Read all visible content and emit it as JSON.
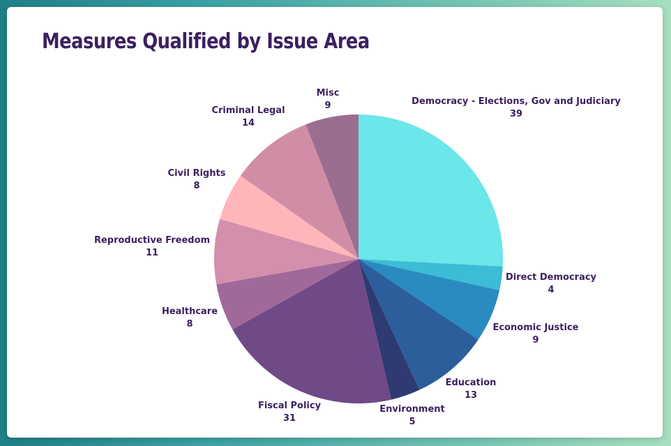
{
  "chart_data": {
    "type": "pie",
    "title": "Measures Qualified by Issue Area",
    "slices": [
      {
        "label": "Democracy - Elections, Gov and Judiciary",
        "value": 39,
        "color": "#6be6ea"
      },
      {
        "label": "Direct Democracy",
        "value": 4,
        "color": "#3cbcd6"
      },
      {
        "label": "Economic Justice",
        "value": 9,
        "color": "#2a8bc0"
      },
      {
        "label": "Education",
        "value": 13,
        "color": "#2c5e9c"
      },
      {
        "label": "Environment",
        "value": 5,
        "color": "#2f3a72"
      },
      {
        "label": "Fiscal Policy",
        "value": 31,
        "color": "#704a86"
      },
      {
        "label": "Healthcare",
        "value": 8,
        "color": "#a0699a"
      },
      {
        "label": "Reproductive Freedom",
        "value": 11,
        "color": "#d38fab"
      },
      {
        "label": "Civil Rights",
        "value": 8,
        "color": "#ffb6bb"
      },
      {
        "label": "Criminal Legal",
        "value": 14,
        "color": "#d28da6"
      },
      {
        "label": "Misc",
        "value": 9,
        "color": "#9b6e90"
      }
    ],
    "legend": "none"
  }
}
